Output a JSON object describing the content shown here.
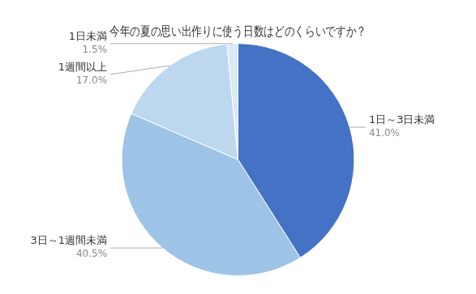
{
  "chart_data": {
    "type": "pie",
    "title": "今年の夏の思い出作りに使う日数はどのくらいですか？",
    "categories": [
      "1日～3日未満",
      "3日～1週間未満",
      "1週間以上",
      "1日未満"
    ],
    "values": [
      41.0,
      40.5,
      17.0,
      1.5
    ],
    "value_labels": [
      "41.0%",
      "40.5%",
      "17.0%",
      "1.5%"
    ],
    "colors": [
      "#4472C4",
      "#9DC3E6",
      "#BDD7EE",
      "#D9E9F5"
    ],
    "data_labels": true
  }
}
